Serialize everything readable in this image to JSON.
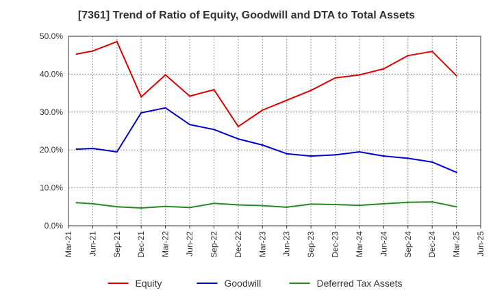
{
  "chart_data": {
    "type": "line",
    "title": "[7361]  Trend of Ratio of Equity, Goodwill and DTA to Total Assets",
    "xlabel": "",
    "ylabel": "",
    "x_ticks": [
      "Mar-21",
      "Jun-21",
      "Sep-21",
      "Dec-21",
      "Mar-22",
      "Jun-22",
      "Sep-22",
      "Dec-22",
      "Mar-23",
      "Jun-23",
      "Sep-23",
      "Dec-23",
      "Mar-24",
      "Jun-24",
      "Sep-24",
      "Dec-24",
      "Mar-25",
      "Jun-25"
    ],
    "y_ticks": [
      "0.0%",
      "10.0%",
      "20.0%",
      "30.0%",
      "40.0%",
      "50.0%"
    ],
    "ylim": [
      0,
      50
    ],
    "grid": true,
    "legend_position": "bottom",
    "x": [
      "Apr-21",
      "Jun-21",
      "Sep-21",
      "Dec-21",
      "Mar-22",
      "Jun-22",
      "Sep-22",
      "Dec-22",
      "Mar-23",
      "Jun-23",
      "Sep-23",
      "Dec-23",
      "Mar-24",
      "Jun-24",
      "Sep-24",
      "Dec-24",
      "Mar-25"
    ],
    "series": [
      {
        "name": "Equity",
        "color": "#e00000",
        "values": [
          45.3,
          46.1,
          48.6,
          34.0,
          39.8,
          34.2,
          35.9,
          26.2,
          30.5,
          33.1,
          35.7,
          39.0,
          39.8,
          41.4,
          44.9,
          46.0,
          39.6
        ]
      },
      {
        "name": "Goodwill",
        "color": "#0000cc",
        "values": [
          20.2,
          20.4,
          19.5,
          29.8,
          31.1,
          26.7,
          25.4,
          22.9,
          21.3,
          19.0,
          18.4,
          18.7,
          19.5,
          18.4,
          17.8,
          16.8,
          14.1
        ]
      },
      {
        "name": "Deferred Tax Assets",
        "color": "#228b22",
        "values": [
          6.1,
          5.8,
          5.0,
          4.7,
          5.1,
          4.8,
          5.9,
          5.5,
          5.3,
          4.9,
          5.7,
          5.6,
          5.4,
          5.8,
          6.2,
          6.3,
          5.0
        ]
      }
    ]
  }
}
